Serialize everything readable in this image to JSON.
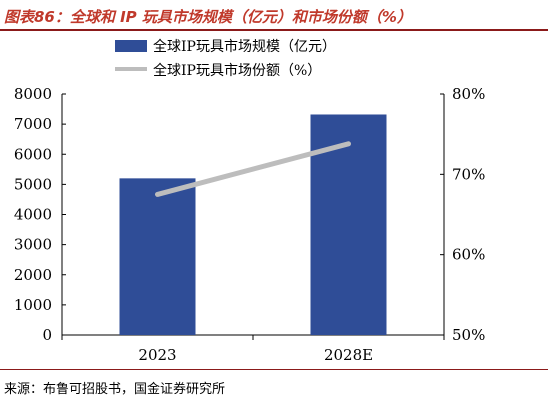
{
  "title": "图表86：全球和 IP 玩具市场规模（亿元）和市场份额（%）",
  "source": "来源：布鲁可招股书，国金证券研究所",
  "colors": {
    "bar": "#2f4d97",
    "line": "#bdbdbd",
    "title": "#c0392b",
    "rule": "#8b1a1a"
  },
  "chart_data": {
    "type": "bar",
    "categories": [
      "2023",
      "2028E"
    ],
    "series": [
      {
        "name": "全球IP玩具市场规模（亿元）",
        "type": "bar",
        "axis": "left",
        "values": [
          5200,
          7320
        ]
      },
      {
        "name": "全球IP玩具市场份额（%）",
        "type": "line",
        "axis": "right",
        "values": [
          67.5,
          73.8
        ]
      }
    ],
    "y_left": {
      "min": 0,
      "max": 8000,
      "ticks": [
        "0",
        "1000",
        "2000",
        "3000",
        "4000",
        "5000",
        "6000",
        "7000",
        "8000"
      ]
    },
    "y_right": {
      "min": 50,
      "max": 80,
      "ticks": [
        "50%",
        "60%",
        "70%",
        "80%"
      ]
    },
    "legend_position": "top-center",
    "grid": false
  }
}
